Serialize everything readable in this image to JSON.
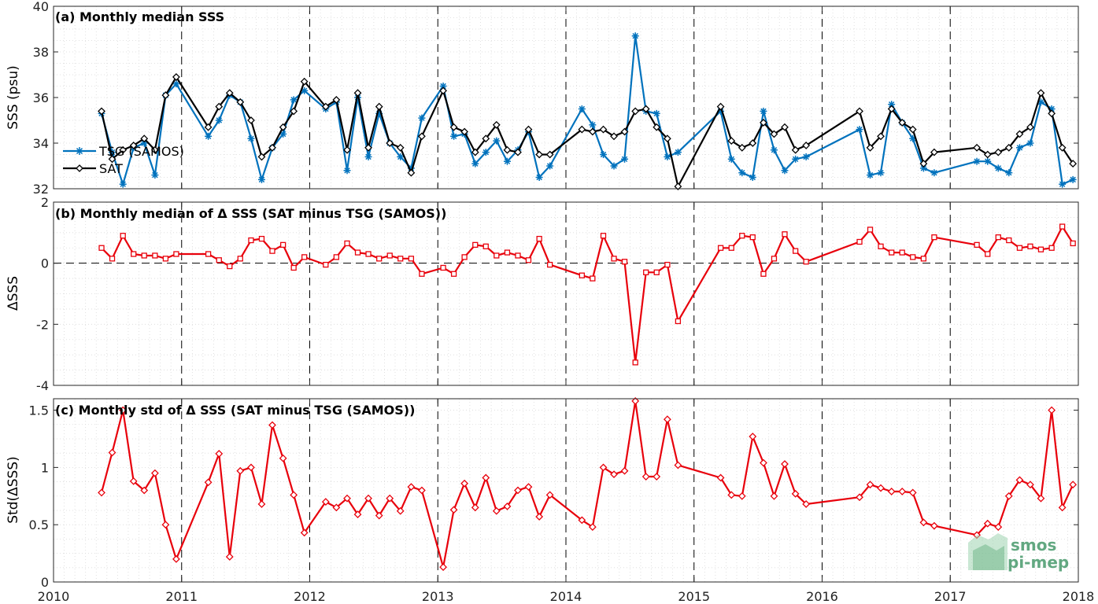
{
  "x_ticks": [
    "2010",
    "2011",
    "2012",
    "2013",
    "2014",
    "2015",
    "2016",
    "2017",
    "2018"
  ],
  "colors": {
    "tsg": "#0072bd",
    "sat": "#000000",
    "delta": "#e8000b",
    "logo": "#2e8b57"
  },
  "logo": {
    "line1": "smos",
    "line2": "pi-mep"
  },
  "chart_data": [
    {
      "type": "line",
      "title": "(a) Monthly median SSS",
      "ylabel": "SSS (psu)",
      "xlim": [
        2010,
        2018
      ],
      "ylim": [
        32,
        40
      ],
      "yticks": [
        "32",
        "34",
        "36",
        "38",
        "40"
      ],
      "legend_position": "center-left",
      "series": [
        {
          "name": "TSG (SAMOS)",
          "color": "#0072bd",
          "marker": "star",
          "x": [
            2010.375,
            2010.458,
            2010.542,
            2010.625,
            2010.708,
            2010.792,
            2010.875,
            2010.958,
            2011.208,
            2011.292,
            2011.375,
            2011.458,
            2011.542,
            2011.625,
            2011.708,
            2011.792,
            2011.875,
            2011.958,
            2012.125,
            2012.208,
            2012.292,
            2012.375,
            2012.458,
            2012.542,
            2012.625,
            2012.708,
            2012.792,
            2012.875,
            2013.042,
            2013.125,
            2013.208,
            2013.292,
            2013.375,
            2013.458,
            2013.542,
            2013.625,
            2013.708,
            2013.792,
            2013.875,
            2014.125,
            2014.208,
            2014.292,
            2014.375,
            2014.458,
            2014.542,
            2014.625,
            2014.708,
            2014.792,
            2014.875,
            2015.208,
            2015.292,
            2015.375,
            2015.458,
            2015.542,
            2015.625,
            2015.708,
            2015.792,
            2015.875,
            2016.292,
            2016.375,
            2016.458,
            2016.542,
            2016.625,
            2016.708,
            2016.792,
            2016.875,
            2017.208,
            2017.292,
            2017.375,
            2017.458,
            2017.542,
            2017.625,
            2017.708,
            2017.792,
            2017.875,
            2017.958
          ],
          "values": [
            35.3,
            33.6,
            32.2,
            33.8,
            34.0,
            32.6,
            36.1,
            36.6,
            34.3,
            35.0,
            36.1,
            35.8,
            34.2,
            32.4,
            33.8,
            34.4,
            35.9,
            36.3,
            35.5,
            35.8,
            32.8,
            36.0,
            33.4,
            35.3,
            34.0,
            33.4,
            32.9,
            35.1,
            36.5,
            34.3,
            34.4,
            33.1,
            33.6,
            34.1,
            33.2,
            33.7,
            34.5,
            32.5,
            33.0,
            35.5,
            34.8,
            33.5,
            33.0,
            33.3,
            38.7,
            35.4,
            35.3,
            33.4,
            33.6,
            35.4,
            33.3,
            32.7,
            32.5,
            35.4,
            33.7,
            32.8,
            33.3,
            33.4,
            34.6,
            32.6,
            32.7,
            35.7,
            34.9,
            34.2,
            32.9,
            32.7,
            33.2,
            33.2,
            32.9,
            32.7,
            33.8,
            34.0,
            35.8,
            35.5,
            32.2,
            32.4
          ]
        },
        {
          "name": "SAT",
          "color": "#000000",
          "marker": "diamond",
          "x": [
            2010.375,
            2010.458,
            2010.542,
            2010.625,
            2010.708,
            2010.792,
            2010.875,
            2010.958,
            2011.208,
            2011.292,
            2011.375,
            2011.458,
            2011.542,
            2011.625,
            2011.708,
            2011.792,
            2011.875,
            2011.958,
            2012.125,
            2012.208,
            2012.292,
            2012.375,
            2012.458,
            2012.542,
            2012.625,
            2012.708,
            2012.792,
            2012.875,
            2013.042,
            2013.125,
            2013.208,
            2013.292,
            2013.375,
            2013.458,
            2013.542,
            2013.625,
            2013.708,
            2013.792,
            2013.875,
            2014.125,
            2014.208,
            2014.292,
            2014.375,
            2014.458,
            2014.542,
            2014.625,
            2014.708,
            2014.792,
            2014.875,
            2015.208,
            2015.292,
            2015.375,
            2015.458,
            2015.542,
            2015.625,
            2015.708,
            2015.792,
            2015.875,
            2016.292,
            2016.375,
            2016.458,
            2016.542,
            2016.625,
            2016.708,
            2016.792,
            2016.875,
            2017.208,
            2017.292,
            2017.375,
            2017.458,
            2017.542,
            2017.625,
            2017.708,
            2017.792,
            2017.875,
            2017.958
          ],
          "values": [
            35.4,
            33.3,
            33.7,
            33.9,
            34.2,
            33.7,
            36.1,
            36.9,
            34.7,
            35.6,
            36.2,
            35.8,
            35.0,
            33.4,
            33.8,
            34.7,
            35.4,
            36.7,
            35.6,
            35.9,
            33.7,
            36.2,
            33.8,
            35.6,
            34.0,
            33.8,
            32.7,
            34.3,
            36.3,
            34.7,
            34.5,
            33.6,
            34.2,
            34.8,
            33.7,
            33.6,
            34.6,
            33.5,
            33.5,
            34.6,
            34.5,
            34.6,
            34.3,
            34.5,
            35.4,
            35.5,
            34.7,
            34.2,
            32.1,
            35.6,
            34.1,
            33.8,
            34.0,
            34.9,
            34.4,
            34.7,
            33.7,
            33.9,
            35.4,
            33.8,
            34.3,
            35.5,
            34.9,
            34.6,
            33.1,
            33.6,
            33.8,
            33.5,
            33.6,
            33.8,
            34.4,
            34.7,
            36.2,
            35.3,
            33.8,
            33.1
          ]
        }
      ]
    },
    {
      "type": "line",
      "title": "(b) Monthly median of Δ SSS (SAT minus TSG (SAMOS))",
      "ylabel": "ΔSSS",
      "xlim": [
        2010,
        2018
      ],
      "ylim": [
        -4,
        2
      ],
      "yticks": [
        "-4",
        "-2",
        "0",
        "2"
      ],
      "zero_line": true,
      "series": [
        {
          "color": "#e8000b",
          "marker": "square",
          "x": [
            2010.375,
            2010.458,
            2010.542,
            2010.625,
            2010.708,
            2010.792,
            2010.875,
            2010.958,
            2011.208,
            2011.292,
            2011.375,
            2011.458,
            2011.542,
            2011.625,
            2011.708,
            2011.792,
            2011.875,
            2011.958,
            2012.125,
            2012.208,
            2012.292,
            2012.375,
            2012.458,
            2012.542,
            2012.625,
            2012.708,
            2012.792,
            2012.875,
            2013.042,
            2013.125,
            2013.208,
            2013.292,
            2013.375,
            2013.458,
            2013.542,
            2013.625,
            2013.708,
            2013.792,
            2013.875,
            2014.125,
            2014.208,
            2014.292,
            2014.375,
            2014.458,
            2014.542,
            2014.625,
            2014.708,
            2014.792,
            2014.875,
            2015.208,
            2015.292,
            2015.375,
            2015.458,
            2015.542,
            2015.625,
            2015.708,
            2015.792,
            2015.875,
            2016.292,
            2016.375,
            2016.458,
            2016.542,
            2016.625,
            2016.708,
            2016.792,
            2016.875,
            2017.208,
            2017.292,
            2017.375,
            2017.458,
            2017.542,
            2017.625,
            2017.708,
            2017.792,
            2017.875,
            2017.958
          ],
          "values": [
            0.5,
            0.15,
            0.9,
            0.3,
            0.25,
            0.25,
            0.15,
            0.3,
            0.3,
            0.1,
            -0.1,
            0.15,
            0.75,
            0.8,
            0.4,
            0.6,
            -0.15,
            0.2,
            -0.05,
            0.2,
            0.65,
            0.35,
            0.3,
            0.15,
            0.25,
            0.15,
            0.15,
            -0.35,
            -0.15,
            -0.35,
            0.2,
            0.6,
            0.55,
            0.25,
            0.35,
            0.25,
            0.1,
            0.8,
            -0.05,
            -0.4,
            -0.5,
            0.9,
            0.15,
            0.05,
            -3.25,
            -0.3,
            -0.3,
            -0.05,
            -1.9,
            0.5,
            0.5,
            0.9,
            0.85,
            -0.35,
            0.15,
            0.95,
            0.4,
            0.05,
            0.7,
            1.1,
            0.55,
            0.35,
            0.35,
            0.2,
            0.15,
            0.85,
            0.6,
            0.3,
            0.85,
            0.75,
            0.5,
            0.55,
            0.45,
            0.5,
            1.2,
            0.65
          ]
        }
      ]
    },
    {
      "type": "line",
      "title": "(c) Monthly std of Δ SSS (SAT minus TSG (SAMOS))",
      "ylabel": "Std(ΔSSS)",
      "xlim": [
        2010,
        2018
      ],
      "ylim": [
        0,
        1.6
      ],
      "yticks": [
        "0",
        "0.5",
        "1",
        "1.5"
      ],
      "series": [
        {
          "color": "#e8000b",
          "marker": "diamond",
          "x": [
            2010.375,
            2010.458,
            2010.542,
            2010.625,
            2010.708,
            2010.792,
            2010.875,
            2010.958,
            2011.208,
            2011.292,
            2011.375,
            2011.458,
            2011.542,
            2011.625,
            2011.708,
            2011.792,
            2011.875,
            2011.958,
            2012.125,
            2012.208,
            2012.292,
            2012.375,
            2012.458,
            2012.542,
            2012.625,
            2012.708,
            2012.792,
            2012.875,
            2013.042,
            2013.125,
            2013.208,
            2013.292,
            2013.375,
            2013.458,
            2013.542,
            2013.625,
            2013.708,
            2013.792,
            2013.875,
            2014.125,
            2014.208,
            2014.292,
            2014.375,
            2014.458,
            2014.542,
            2014.625,
            2014.708,
            2014.792,
            2014.875,
            2015.208,
            2015.292,
            2015.375,
            2015.458,
            2015.542,
            2015.625,
            2015.708,
            2015.792,
            2015.875,
            2016.292,
            2016.375,
            2016.458,
            2016.542,
            2016.625,
            2016.708,
            2016.792,
            2016.875,
            2017.208,
            2017.292,
            2017.375,
            2017.458,
            2017.542,
            2017.625,
            2017.708,
            2017.792,
            2017.875,
            2017.958
          ],
          "values": [
            0.78,
            1.13,
            1.5,
            0.88,
            0.8,
            0.95,
            0.5,
            0.2,
            0.87,
            1.12,
            0.22,
            0.97,
            1.0,
            0.68,
            1.37,
            1.08,
            0.76,
            0.43,
            0.7,
            0.65,
            0.73,
            0.59,
            0.73,
            0.58,
            0.73,
            0.62,
            0.83,
            0.8,
            0.13,
            0.63,
            0.86,
            0.65,
            0.91,
            0.62,
            0.66,
            0.8,
            0.83,
            0.57,
            0.76,
            0.54,
            0.48,
            1.0,
            0.94,
            0.97,
            1.58,
            0.92,
            0.92,
            1.42,
            1.02,
            0.91,
            0.76,
            0.75,
            1.27,
            1.04,
            0.75,
            1.03,
            0.77,
            0.68,
            0.74,
            0.85,
            0.82,
            0.79,
            0.79,
            0.78,
            0.52,
            0.49,
            0.41,
            0.51,
            0.48,
            0.75,
            0.89,
            0.85,
            0.73,
            1.5,
            0.65,
            0.85
          ]
        }
      ]
    }
  ]
}
